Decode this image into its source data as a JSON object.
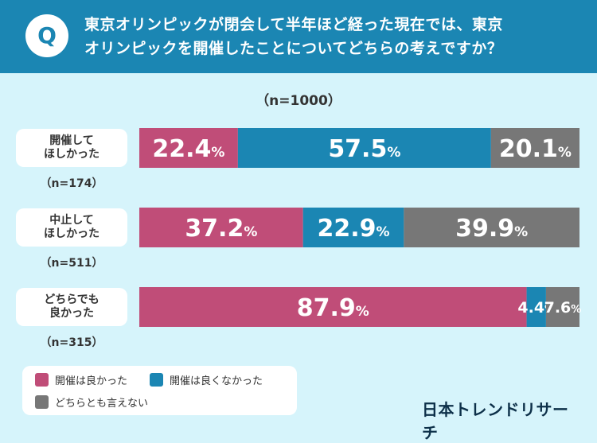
{
  "header": {
    "badge": "Q",
    "question_line1": "東京オリンピックが閉会して半年ほど経った現在では、東京",
    "question_line2": "オリンピックを開催したことについてどちらの考えですか？"
  },
  "chart_data": {
    "type": "bar",
    "orientation": "horizontal-stacked-100",
    "sample_label": "（n=1000）",
    "rows": [
      {
        "label_line1": "開催して",
        "label_line2": "ほしかった",
        "n_label": "（n=174）",
        "values": [
          22.4,
          57.5,
          20.1
        ]
      },
      {
        "label_line1": "中止して",
        "label_line2": "ほしかった",
        "n_label": "（n=511）",
        "values": [
          37.2,
          22.9,
          39.9
        ]
      },
      {
        "label_line1": "どちらでも",
        "label_line2": "良かった",
        "n_label": "（n=315）",
        "values": [
          87.9,
          4.4,
          7.6
        ]
      }
    ],
    "series": [
      {
        "name": "開催は良かった",
        "color": "#c04d78"
      },
      {
        "name": "開催は良くなかった",
        "color": "#1b86b3"
      },
      {
        "name": "どちらとも言えない",
        "color": "#777777"
      }
    ],
    "unit": "%"
  },
  "brand": "日本トレンドリサーチ"
}
